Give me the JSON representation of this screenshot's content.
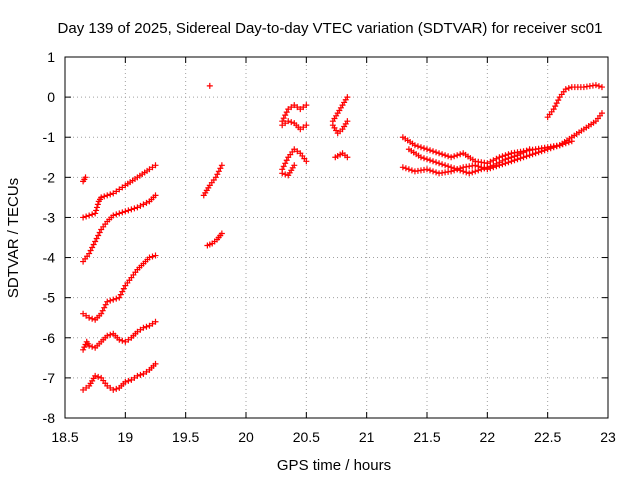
{
  "chart_data": {
    "type": "scatter",
    "title": "Day 139 of 2025, Sidereal Day-to-day VTEC variation (SDTVAR) for receiver sc01",
    "xlabel": "GPS time / hours",
    "ylabel": "SDTVAR / TECUs",
    "xlim": [
      18.5,
      23.0
    ],
    "ylim": [
      -8,
      1
    ],
    "x_ticks": [
      "18.5",
      "19",
      "19.5",
      "20",
      "20.5",
      "21",
      "21.5",
      "22",
      "22.5",
      "23"
    ],
    "y_ticks": [
      "1",
      "0",
      "-1",
      "-2",
      "-3",
      "-4",
      "-5",
      "-6",
      "-7",
      "-8"
    ],
    "grid": true,
    "marker": "plus",
    "series_color": "#ff0000",
    "segments": [
      {
        "x": [
          18.65,
          18.67
        ],
        "y": [
          -2.1,
          -2.0
        ]
      },
      {
        "x": [
          18.65,
          18.7,
          18.75,
          18.78,
          18.8,
          18.85,
          18.9,
          18.95,
          19.0,
          19.1,
          19.2,
          19.25
        ],
        "y": [
          -3.0,
          -2.95,
          -2.9,
          -2.6,
          -2.5,
          -2.45,
          -2.4,
          -2.3,
          -2.2,
          -2.0,
          -1.8,
          -1.7
        ]
      },
      {
        "x": [
          18.65,
          18.7,
          18.75,
          18.8,
          18.85,
          18.9,
          18.95,
          19.0,
          19.1,
          19.2,
          19.25
        ],
        "y": [
          -4.1,
          -3.9,
          -3.6,
          -3.3,
          -3.1,
          -2.95,
          -2.9,
          -2.85,
          -2.75,
          -2.6,
          -2.45
        ]
      },
      {
        "x": [
          18.65,
          18.7,
          18.75,
          18.8,
          18.85,
          18.9,
          18.95,
          19.0,
          19.05,
          19.1,
          19.15,
          19.2,
          19.25
        ],
        "y": [
          -5.4,
          -5.5,
          -5.55,
          -5.4,
          -5.1,
          -5.05,
          -5.0,
          -4.7,
          -4.5,
          -4.3,
          -4.15,
          -4.0,
          -3.95
        ]
      },
      {
        "x": [
          18.65,
          18.68,
          18.7,
          18.75,
          18.8,
          18.85,
          18.9,
          18.95,
          19.0,
          19.05,
          19.1,
          19.15,
          19.2,
          19.25
        ],
        "y": [
          -6.3,
          -6.1,
          -6.2,
          -6.25,
          -6.1,
          -5.95,
          -5.9,
          -6.05,
          -6.1,
          -6.0,
          -5.85,
          -5.75,
          -5.7,
          -5.6
        ]
      },
      {
        "x": [
          18.65,
          18.7,
          18.75,
          18.8,
          18.85,
          18.9,
          18.95,
          19.0,
          19.05,
          19.1,
          19.15,
          19.2,
          19.25
        ],
        "y": [
          -7.3,
          -7.2,
          -6.95,
          -7.0,
          -7.2,
          -7.3,
          -7.25,
          -7.1,
          -7.05,
          -6.95,
          -6.9,
          -6.8,
          -6.65
        ]
      },
      {
        "x": [
          19.65,
          19.7,
          19.75,
          19.8
        ],
        "y": [
          -2.45,
          -2.2,
          -2.0,
          -1.7
        ]
      },
      {
        "x": [
          19.68,
          19.72,
          19.76,
          19.8
        ],
        "y": [
          -3.7,
          -3.65,
          -3.55,
          -3.4
        ]
      },
      {
        "x": [
          19.7
        ],
        "y": [
          0.28
        ]
      },
      {
        "x": [
          20.3,
          20.35,
          20.4,
          20.45,
          20.5
        ],
        "y": [
          -0.6,
          -0.3,
          -0.2,
          -0.3,
          -0.2
        ]
      },
      {
        "x": [
          20.3,
          20.35,
          20.4,
          20.45,
          20.5
        ],
        "y": [
          -0.7,
          -0.6,
          -0.65,
          -0.8,
          -0.7
        ]
      },
      {
        "x": [
          20.3,
          20.35,
          20.4,
          20.45,
          20.5
        ],
        "y": [
          -1.8,
          -1.5,
          -1.3,
          -1.4,
          -1.6
        ]
      },
      {
        "x": [
          20.3,
          20.35,
          20.4
        ],
        "y": [
          -1.9,
          -1.95,
          -1.7
        ]
      },
      {
        "x": [
          20.72,
          20.76,
          20.8,
          20.84
        ],
        "y": [
          -0.6,
          -0.4,
          -0.2,
          0.0
        ]
      },
      {
        "x": [
          20.72,
          20.76,
          20.8,
          20.84
        ],
        "y": [
          -0.7,
          -0.9,
          -0.8,
          -0.6
        ]
      },
      {
        "x": [
          20.74,
          20.8,
          20.84
        ],
        "y": [
          -1.5,
          -1.4,
          -1.5
        ]
      },
      {
        "x": [
          21.3,
          21.4,
          21.5,
          21.6,
          21.7,
          21.8,
          21.9,
          22.0,
          22.1,
          22.2,
          22.3,
          22.4,
          22.5,
          22.6,
          22.7,
          22.8,
          22.9,
          22.95
        ],
        "y": [
          -1.0,
          -1.2,
          -1.3,
          -1.4,
          -1.5,
          -1.4,
          -1.6,
          -1.65,
          -1.5,
          -1.4,
          -1.35,
          -1.3,
          -1.25,
          -1.2,
          -1.0,
          -0.8,
          -0.6,
          -0.4
        ]
      },
      {
        "x": [
          21.3,
          21.4,
          21.5,
          21.6,
          21.7,
          21.8,
          21.9,
          22.0,
          22.1,
          22.2,
          22.3,
          22.4,
          22.5,
          22.6,
          22.7
        ],
        "y": [
          -1.75,
          -1.85,
          -1.8,
          -1.9,
          -1.85,
          -1.75,
          -1.7,
          -1.8,
          -1.7,
          -1.6,
          -1.5,
          -1.4,
          -1.3,
          -1.2,
          -1.1
        ]
      },
      {
        "x": [
          21.35,
          21.45,
          21.55,
          21.65,
          21.75,
          21.85,
          21.95,
          22.05,
          22.15,
          22.25,
          22.35
        ],
        "y": [
          -1.3,
          -1.5,
          -1.6,
          -1.7,
          -1.8,
          -1.9,
          -1.8,
          -1.7,
          -1.55,
          -1.45,
          -1.3
        ]
      },
      {
        "x": [
          22.5,
          22.55,
          22.6,
          22.65,
          22.7,
          22.8,
          22.9,
          22.95
        ],
        "y": [
          -0.5,
          -0.3,
          0.0,
          0.2,
          0.25,
          0.25,
          0.3,
          0.25
        ]
      }
    ]
  }
}
